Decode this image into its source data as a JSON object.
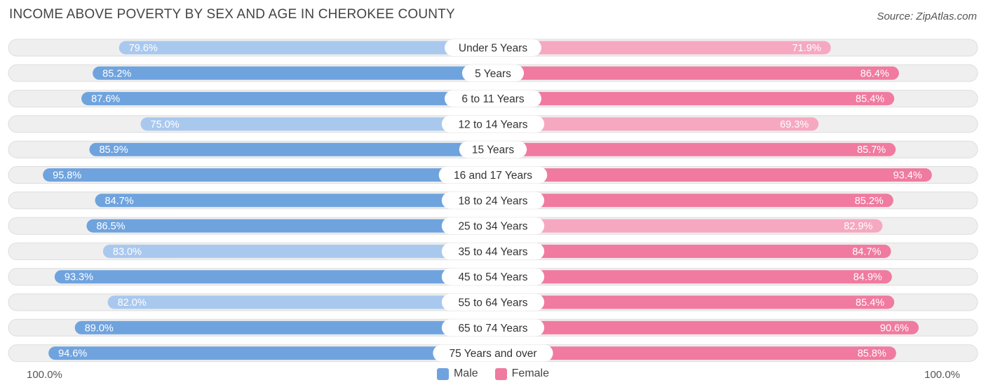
{
  "title": "INCOME ABOVE POVERTY BY SEX AND AGE IN CHEROKEE COUNTY",
  "source": "Source: ZipAtlas.com",
  "colors": {
    "male_strong": "#6fa3de",
    "male_light": "#a9c8ee",
    "female_strong": "#f07aa0",
    "female_light": "#f6a8c1",
    "track": "#efefef",
    "track_border": "#dedede"
  },
  "chart_data": {
    "type": "bar",
    "orientation": "horizontal-diverging",
    "title": "INCOME ABOVE POVERTY BY SEX AND AGE IN CHEROKEE COUNTY",
    "categories": [
      "Under 5 Years",
      "5 Years",
      "6 to 11 Years",
      "12 to 14 Years",
      "15 Years",
      "16 and 17 Years",
      "18 to 24 Years",
      "25 to 34 Years",
      "35 to 44 Years",
      "45 to 54 Years",
      "55 to 64 Years",
      "65 to 74 Years",
      "75 Years and over"
    ],
    "series": [
      {
        "name": "Male",
        "values": [
          79.6,
          85.2,
          87.6,
          75.0,
          85.9,
          95.8,
          84.7,
          86.5,
          83.0,
          93.3,
          82.0,
          89.0,
          94.6
        ],
        "labels": [
          "79.6%",
          "85.2%",
          "87.6%",
          "75.0%",
          "85.9%",
          "95.8%",
          "84.7%",
          "86.5%",
          "83.0%",
          "93.3%",
          "82.0%",
          "89.0%",
          "94.6%"
        ]
      },
      {
        "name": "Female",
        "values": [
          71.9,
          86.4,
          85.4,
          69.3,
          85.7,
          93.4,
          85.2,
          82.9,
          84.7,
          84.9,
          85.4,
          90.6,
          85.8
        ],
        "labels": [
          "71.9%",
          "86.4%",
          "85.4%",
          "69.3%",
          "85.7%",
          "93.4%",
          "85.2%",
          "82.9%",
          "84.7%",
          "84.9%",
          "85.4%",
          "90.6%",
          "85.8%"
        ]
      }
    ],
    "xlim": [
      0,
      100
    ],
    "axis_left_label": "100.0%",
    "axis_right_label": "100.0%",
    "legend": [
      "Male",
      "Female"
    ],
    "legend_position": "bottom-center"
  }
}
